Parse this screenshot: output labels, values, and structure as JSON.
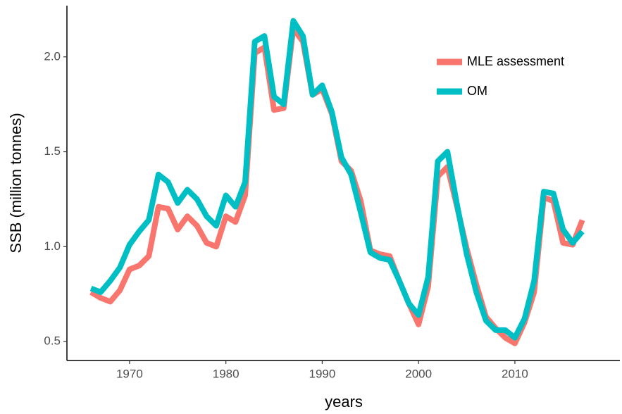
{
  "chart_data": {
    "type": "line",
    "x_label": "years",
    "y_label": "SSB (million tonnes)",
    "x": [
      1966,
      1967,
      1968,
      1969,
      1970,
      1971,
      1972,
      1973,
      1974,
      1975,
      1976,
      1977,
      1978,
      1979,
      1980,
      1981,
      1982,
      1983,
      1984,
      1985,
      1986,
      1987,
      1988,
      1989,
      1990,
      1991,
      1992,
      1993,
      1994,
      1995,
      1996,
      1997,
      1998,
      1999,
      2000,
      2001,
      2002,
      2003,
      2004,
      2005,
      2006,
      2007,
      2008,
      2009,
      2010,
      2011,
      2012,
      2013,
      2014,
      2015,
      2016,
      2017
    ],
    "series": [
      {
        "name": "MLE assessment",
        "color": "#F8766D",
        "values": [
          0.76,
          0.73,
          0.71,
          0.77,
          0.88,
          0.9,
          0.95,
          1.21,
          1.2,
          1.09,
          1.16,
          1.11,
          1.02,
          1.0,
          1.16,
          1.13,
          1.27,
          2.02,
          2.05,
          1.72,
          1.73,
          2.15,
          2.08,
          1.8,
          1.83,
          1.7,
          1.45,
          1.4,
          1.24,
          0.98,
          0.96,
          0.95,
          0.82,
          0.7,
          0.59,
          0.79,
          1.37,
          1.42,
          1.21,
          0.99,
          0.8,
          0.63,
          0.57,
          0.52,
          0.49,
          0.6,
          0.76,
          1.26,
          1.24,
          1.02,
          1.01,
          1.14
        ]
      },
      {
        "name": "OM",
        "color": "#00BFC4",
        "values": [
          0.78,
          0.76,
          0.82,
          0.89,
          1.01,
          1.08,
          1.14,
          1.38,
          1.34,
          1.23,
          1.3,
          1.25,
          1.16,
          1.11,
          1.27,
          1.21,
          1.34,
          2.08,
          2.11,
          1.79,
          1.75,
          2.19,
          2.11,
          1.8,
          1.85,
          1.71,
          1.47,
          1.38,
          1.18,
          0.97,
          0.94,
          0.93,
          0.82,
          0.7,
          0.64,
          0.84,
          1.45,
          1.5,
          1.22,
          0.96,
          0.76,
          0.61,
          0.56,
          0.56,
          0.52,
          0.62,
          0.82,
          1.29,
          1.28,
          1.09,
          1.02,
          1.08
        ]
      }
    ],
    "xlim": [
      1963.5,
      2020.9
    ],
    "xticks": [
      1970,
      1980,
      1990,
      2000,
      2010
    ],
    "ylim": [
      0.4,
      2.27
    ],
    "yticks": [
      {
        "value": 0.5,
        "label": "0.5"
      },
      {
        "value": 1,
        "label": "1.0"
      },
      1.5,
      {
        "value": 2,
        "label": "2.0"
      }
    ],
    "legend": "top-right",
    "grid": false
  }
}
